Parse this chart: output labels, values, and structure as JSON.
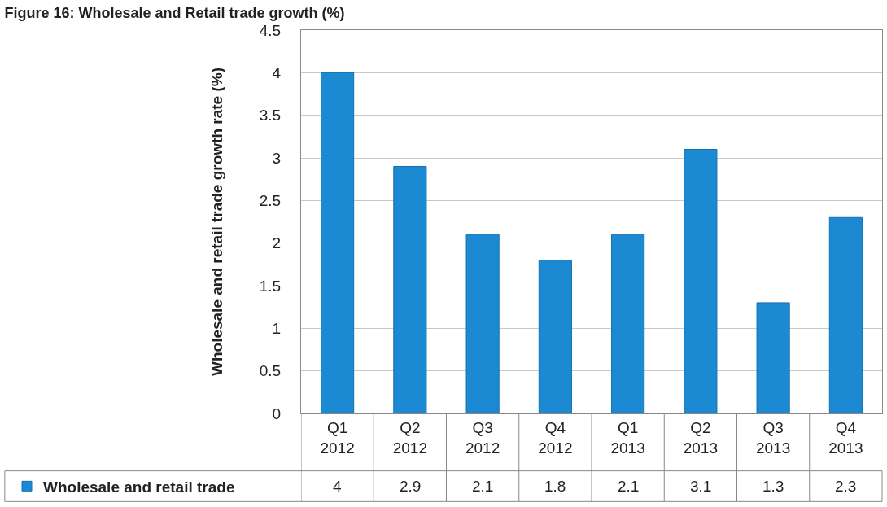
{
  "chart_data": {
    "type": "bar",
    "title": "Figure 16: Wholesale and Retail trade growth (%)",
    "ylabel": "Wholesale and retail trade growth rate (%)",
    "categories": [
      "Q1 2012",
      "Q2 2012",
      "Q3 2012",
      "Q4 2012",
      "Q1 2013",
      "Q2 2013",
      "Q3 2013",
      "Q4 2013"
    ],
    "series": [
      {
        "name": "Wholesale and retail trade",
        "color": "#1b8ad3",
        "values": [
          4,
          2.9,
          2.1,
          1.8,
          2.1,
          3.1,
          1.3,
          2.3
        ]
      }
    ],
    "ylim": [
      0,
      4.5
    ],
    "yticks": [
      0,
      0.5,
      1,
      1.5,
      2,
      2.5,
      3,
      3.5,
      4,
      4.5
    ],
    "grid": "y",
    "legend": "bottom",
    "data_labels": true
  }
}
